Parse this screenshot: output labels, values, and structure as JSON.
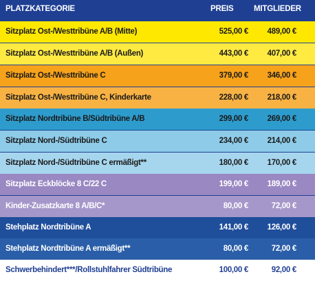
{
  "header": {
    "category": "PLATZKATEGORIE",
    "price": "PREIS",
    "member": "MITGLIEDER"
  },
  "rows": [
    {
      "category": "Sitzplatz Ost-/Westtribüne A/B (Mitte)",
      "price": "525,00 €",
      "member": "489,00 €",
      "bg": "#ffe800",
      "fg": "#1a1a1a"
    },
    {
      "category": "Sitzplatz Ost-/Westtribüne A/B (Außen)",
      "price": "443,00 €",
      "member": "407,00 €",
      "bg": "#ffea42",
      "fg": "#1a1a1a"
    },
    {
      "category": "Sitzplatz Ost-/Westtribüne C",
      "price": "379,00 €",
      "member": "346,00 €",
      "bg": "#f7a21b",
      "fg": "#1a1a1a"
    },
    {
      "category": "Sitzplatz Ost-/Westtribüne C, Kinderkarte",
      "price": "228,00 €",
      "member": "218,00 €",
      "bg": "#f8b244",
      "fg": "#1a1a1a"
    },
    {
      "category": "Sitzplatz Nordtribüne B/Südtribüne A/B",
      "price": "299,00 €",
      "member": "269,00 €",
      "bg": "#2d9ccd",
      "fg": "#1a1a1a"
    },
    {
      "category": "Sitzplatz Nord-/Südtribüne C",
      "price": "234,00 €",
      "member": "214,00 €",
      "bg": "#8ecbe8",
      "fg": "#1a1a1a"
    },
    {
      "category": "Sitzplatz Nord-/Südtribüne C ermäßigt**",
      "price": "180,00 €",
      "member": "170,00 €",
      "bg": "#a6d6ee",
      "fg": "#1a1a1a"
    },
    {
      "category": "Sitzplatz Eckblöcke 8 C/22 C",
      "price": "199,00 €",
      "member": "189,00 €",
      "bg": "#9988c2",
      "fg": "#ffffff"
    },
    {
      "category": "Kinder-Zusatzkarte 8 A/B/C*",
      "price": "80,00 €",
      "member": "72,00 €",
      "bg": "#a697ca",
      "fg": "#ffffff"
    },
    {
      "category": "Stehplatz Nordtribüne A",
      "price": "141,00 €",
      "member": "126,00 €",
      "bg": "#1f4e9b",
      "fg": "#ffffff"
    },
    {
      "category": "Stehplatz Nordtribüne A ermäßigt**",
      "price": "80,00 €",
      "member": "72,00 €",
      "bg": "#2a5ea8",
      "fg": "#ffffff"
    },
    {
      "category": "Schwerbehindert***/Rollstuhlfahrer Südtribüne",
      "price": "100,00 €",
      "member": "92,00 €",
      "bg": "#ffffff",
      "fg": "#1f3f93"
    }
  ]
}
